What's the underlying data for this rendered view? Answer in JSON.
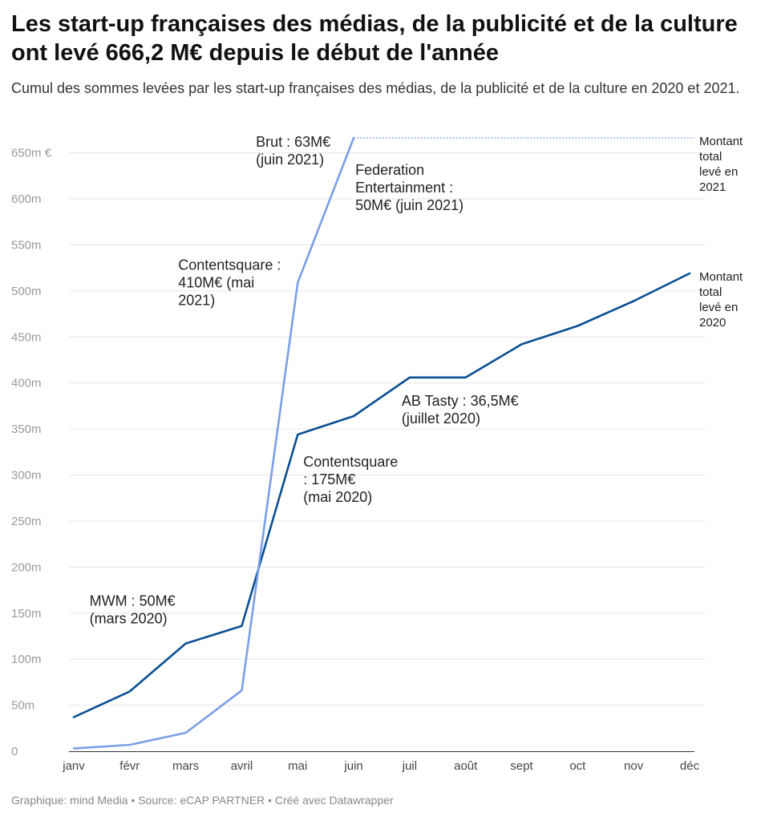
{
  "title": "Les start-up françaises des médias, de la publicité et de la culture ont levé 666,2 M€ depuis le début de l'année",
  "subtitle": "Cumul des sommes levées par les start-up françaises des médias, de la publicité et de la culture en 2020 et 2021.",
  "footer": "Graphique: mind Media • Source: eCAP PARTNER • Créé avec Datawrapper",
  "colors": {
    "series_2020": "#0a4f93",
    "series_2021": "#7a9fe6",
    "grid": "#e6e6e6",
    "axis": "#333333"
  },
  "chart_data": {
    "type": "line",
    "categories": [
      "janv",
      "févr",
      "mars",
      "avril",
      "mai",
      "juin",
      "juil",
      "août",
      "sept",
      "oct",
      "nov",
      "déc"
    ],
    "ylim": [
      0,
      666.2
    ],
    "yticks": [
      0,
      50,
      100,
      150,
      200,
      250,
      300,
      350,
      400,
      450,
      500,
      550,
      600,
      650
    ],
    "ytick_labels": [
      "0",
      "50m",
      "100m",
      "150m",
      "200m",
      "250m",
      "300m",
      "350m",
      "400m",
      "450m",
      "500m",
      "550m",
      "600m",
      "650m €"
    ],
    "grid": true,
    "series": [
      {
        "key": "2020",
        "values": [
          37,
          65,
          117,
          136,
          344,
          364,
          406,
          406,
          442,
          462,
          489,
          519
        ]
      },
      {
        "key": "2021",
        "values": [
          3,
          7,
          20,
          66,
          509,
          666.2,
          null,
          null,
          null,
          null,
          null,
          null
        ],
        "reference_line": 666.2
      }
    ],
    "annotations": [
      {
        "lines": [
          "MWM : 50M€",
          "(mars 2020)"
        ],
        "series": "2020",
        "category": "mars"
      },
      {
        "lines": [
          "Contentsquare",
          ": 175M€",
          "(mai 2020)"
        ],
        "series": "2020",
        "category": "mai"
      },
      {
        "lines": [
          "AB Tasty : 36,5M€",
          "(juillet 2020)"
        ],
        "series": "2020",
        "category": "juil"
      },
      {
        "lines": [
          "Contentsquare :",
          "410M€ (mai",
          "2021)"
        ],
        "series": "2021",
        "category": "mai"
      },
      {
        "lines": [
          "Brut : 63M€",
          "(juin 2021)"
        ],
        "series": "2021",
        "category": "juin"
      },
      {
        "lines": [
          "Federation",
          "Entertainment :",
          "50M€ (juin 2021)"
        ],
        "series": "2021",
        "category": "juin"
      }
    ],
    "end_labels": [
      {
        "series": "2021",
        "lines": [
          "Montant",
          "total",
          "levé en",
          "2021"
        ]
      },
      {
        "series": "2020",
        "lines": [
          "Montant",
          "total",
          "levé en",
          "2020"
        ]
      }
    ]
  }
}
